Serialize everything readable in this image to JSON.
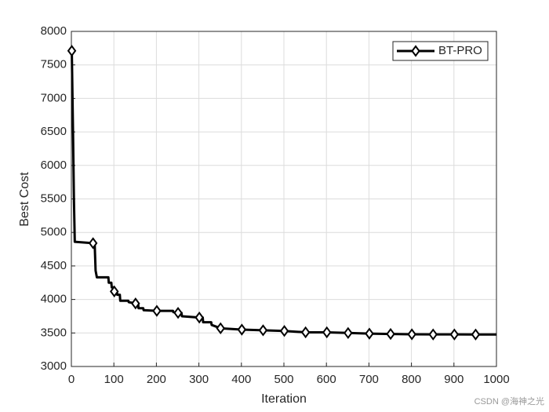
{
  "chart_data": {
    "type": "line",
    "x_label": "Iteration",
    "y_label": "Best Cost",
    "xlim": [
      0,
      1000
    ],
    "xticks": [
      0,
      100,
      200,
      300,
      400,
      500,
      600,
      700,
      800,
      900,
      1000
    ],
    "ylim": [
      3000,
      8000
    ],
    "yticks": [
      3000,
      3500,
      4000,
      4500,
      5000,
      5500,
      6000,
      6500,
      7000,
      7500,
      8000
    ],
    "grid": true,
    "legend": "upper right",
    "marker": "diamond",
    "markevery": 50,
    "x": [
      1,
      4,
      6,
      8,
      51,
      55,
      57,
      60,
      87,
      88,
      94,
      95,
      100,
      101,
      107,
      108,
      114,
      115,
      134,
      135,
      151,
      157,
      158,
      169,
      170,
      201,
      239,
      240,
      251,
      259,
      260,
      301,
      309,
      310,
      329,
      330,
      351,
      401,
      451,
      501,
      551,
      601,
      651,
      701,
      751,
      801,
      851,
      901,
      951,
      1000
    ],
    "series": [
      {
        "name": "BT-PRO",
        "color": "#000000",
        "values": [
          7710,
          6450,
          5500,
          4860,
          4840,
          4800,
          4430,
          4330,
          4330,
          4250,
          4250,
          4180,
          4180,
          4120,
          4120,
          4070,
          4070,
          3980,
          3980,
          3960,
          3940,
          3940,
          3870,
          3870,
          3840,
          3830,
          3830,
          3810,
          3800,
          3800,
          3750,
          3730,
          3730,
          3660,
          3660,
          3620,
          3570,
          3550,
          3540,
          3530,
          3510,
          3510,
          3500,
          3490,
          3485,
          3480,
          3478,
          3478,
          3477,
          3477
        ]
      }
    ],
    "watermark": "CSDN @海神之光"
  }
}
